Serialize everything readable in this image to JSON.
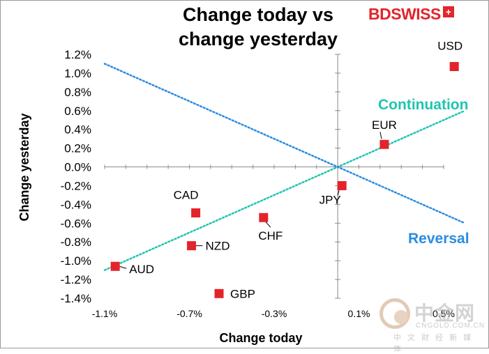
{
  "chart_data": {
    "type": "scatter",
    "title": "Change today vs change yesterday",
    "title_lines": [
      "Change today vs",
      "change yesterday"
    ],
    "xlabel": "Change today",
    "ylabel": "Change yesterday",
    "xlim": [
      -1.1,
      0.5
    ],
    "ylim": [
      -1.4,
      1.2
    ],
    "x_ticks": [
      -1.1,
      -0.7,
      -0.3,
      0.1,
      0.5
    ],
    "x_tick_labels": [
      "-1.1%",
      "-0.7%",
      "-0.3%",
      "0.1%",
      "0.5%"
    ],
    "y_ticks": [
      1.2,
      1.0,
      0.8,
      0.6,
      0.4,
      0.2,
      0.0,
      -0.2,
      -0.4,
      -0.6,
      -0.8,
      -1.0,
      -1.2,
      -1.4
    ],
    "y_tick_labels": [
      "1.2%",
      "1.0%",
      "0.8%",
      "0.6%",
      "0.4%",
      "0.2%",
      "0.0%",
      "-0.2%",
      "-0.4%",
      "-0.6%",
      "-0.8%",
      "-1.0%",
      "-1.2%",
      "-1.4%"
    ],
    "points": [
      {
        "label": "USD",
        "x": 0.55,
        "y": 1.07
      },
      {
        "label": "EUR",
        "x": 0.22,
        "y": 0.24
      },
      {
        "label": "JPY",
        "x": 0.02,
        "y": -0.2
      },
      {
        "label": "CAD",
        "x": -0.67,
        "y": -0.49
      },
      {
        "label": "CHF",
        "x": -0.35,
        "y": -0.54
      },
      {
        "label": "NZD",
        "x": -0.69,
        "y": -0.84
      },
      {
        "label": "AUD",
        "x": -1.05,
        "y": -1.06
      },
      {
        "label": "GBP",
        "x": -0.56,
        "y": -1.35
      }
    ],
    "lines": [
      {
        "name": "Continuation",
        "x": [
          -1.1,
          0.6
        ],
        "y": [
          -1.1,
          0.6
        ]
      },
      {
        "name": "Reversal",
        "x": [
          -1.1,
          0.6
        ],
        "y": [
          1.1,
          -0.6
        ]
      }
    ],
    "colors": {
      "marker": "#e3242b",
      "continuation": "#1fc4b0",
      "reversal": "#2a8ce0",
      "axis": "#8a8a8a"
    }
  },
  "branding": {
    "logo": "BDSWISS",
    "logo_mark": "+",
    "watermark_brand": "中金网",
    "watermark_domain": "CNGOLD.COM.CN",
    "watermark_tagline": "中 文 财 经 新 媒 体"
  }
}
